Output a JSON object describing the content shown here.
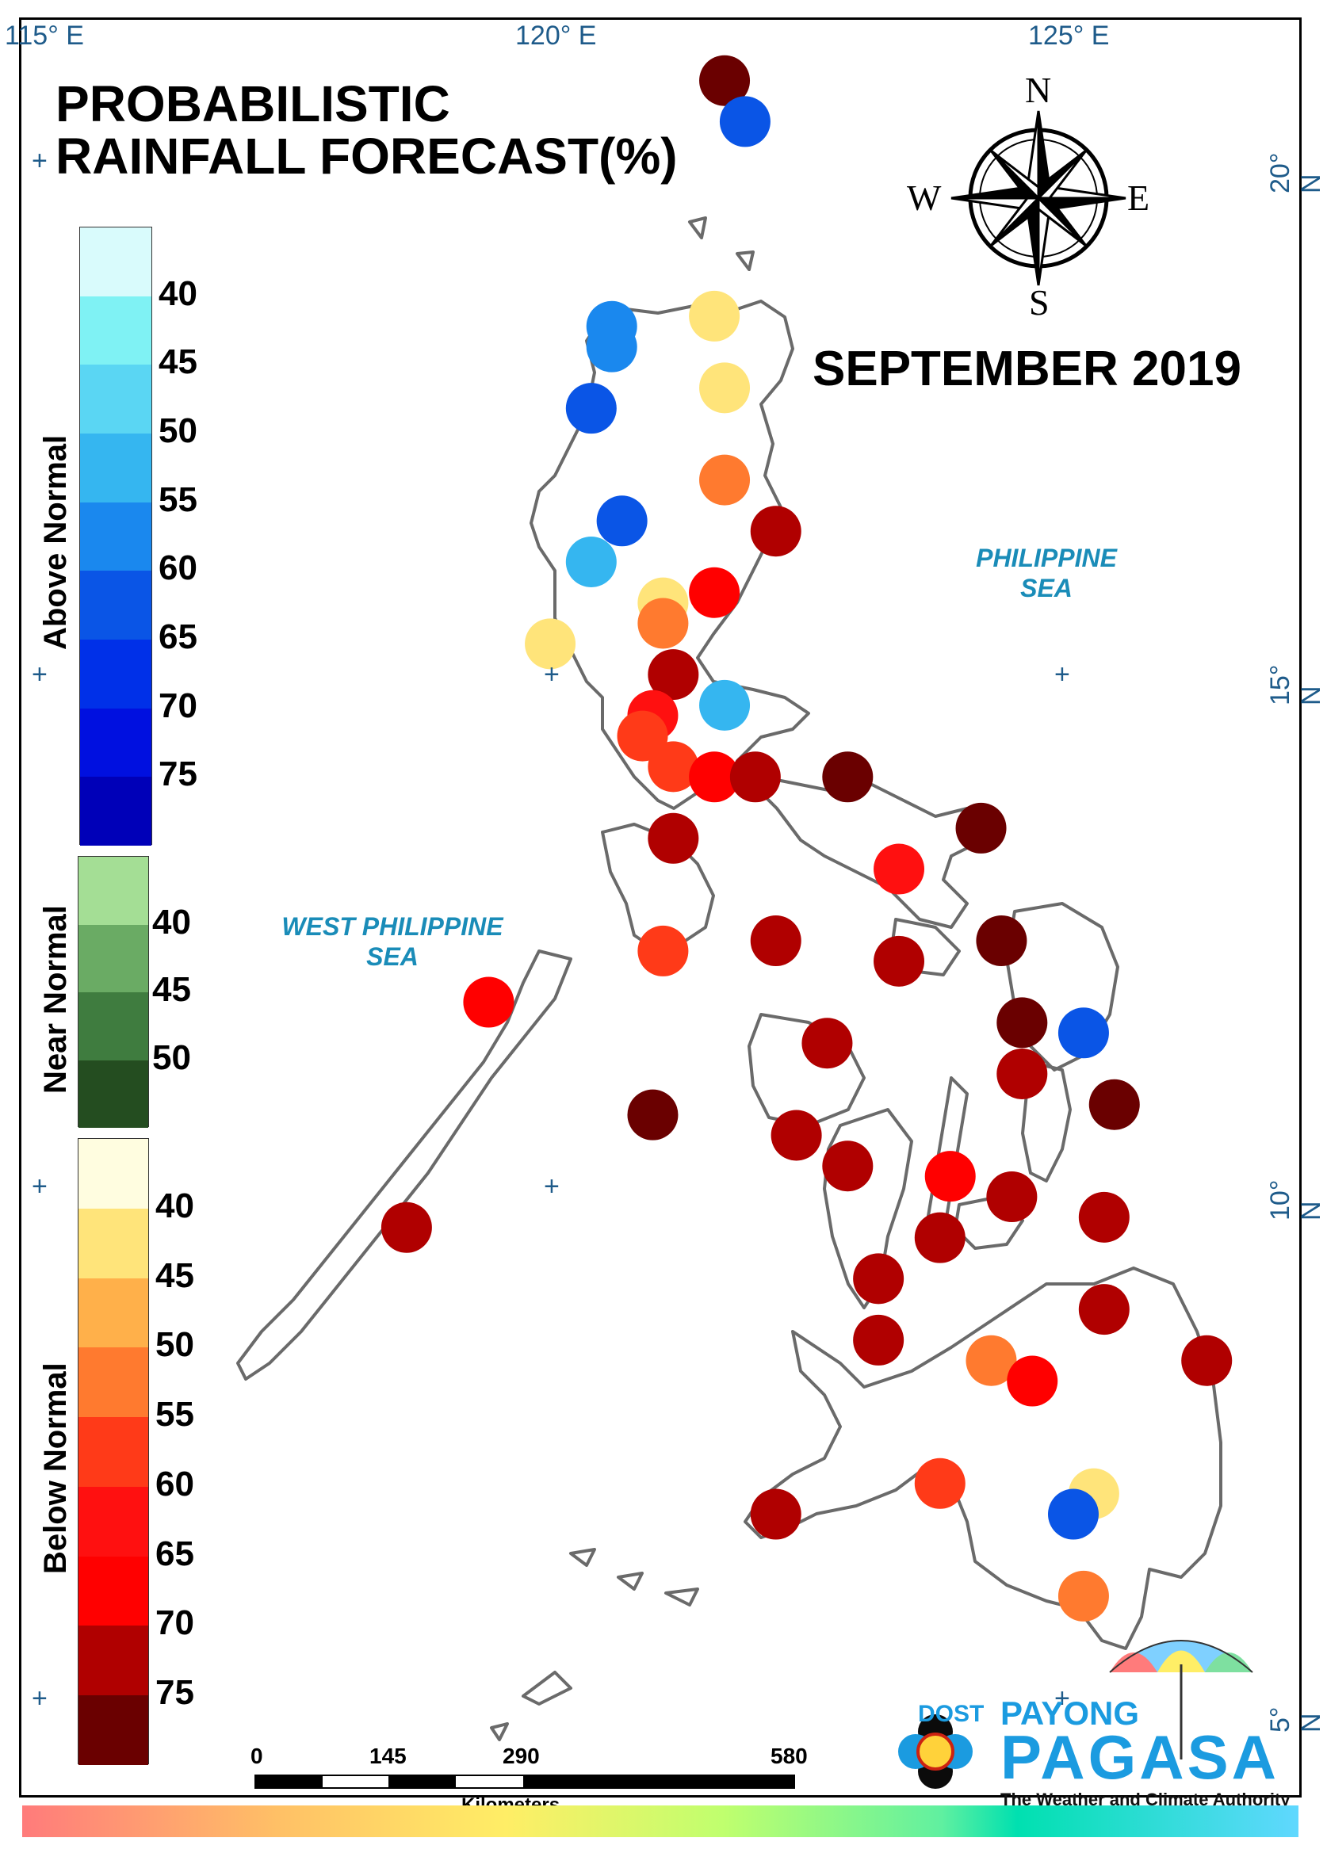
{
  "title_line1": "PROBABILISTIC",
  "title_line2": "RAINFALL FORECAST(%)",
  "month": "SEPTEMBER 2019",
  "seas": {
    "east_line1": "PHILIPPINE",
    "east_line2": "SEA",
    "west_line1": "WEST PHILIPPINE",
    "west_line2": "SEA"
  },
  "graticule": {
    "lon115": "115° E",
    "lon120": "120° E",
    "lon125": "125° E",
    "lat20": "20° N",
    "lat15": "15° N",
    "lat10": "10° N",
    "lat5": "5° N"
  },
  "compass": {
    "n": "N",
    "s": "S",
    "e": "E",
    "w": "W"
  },
  "legend": {
    "above": {
      "title": "Above Normal",
      "ticks": [
        "40",
        "45",
        "50",
        "55",
        "60",
        "65",
        "70",
        "75"
      ],
      "colors": [
        "#d9fbfc",
        "#7ff2f4",
        "#5ad6f3",
        "#35b6f0",
        "#1a88ee",
        "#0a55e6",
        "#0030e8",
        "#0010e0",
        "#0000b8"
      ]
    },
    "near": {
      "title": "Near Normal",
      "ticks": [
        "40",
        "45",
        "50"
      ],
      "colors": [
        "#a4de95",
        "#6aab64",
        "#3f7c3f",
        "#244d20"
      ]
    },
    "below": {
      "title": "Below Normal",
      "ticks": [
        "40",
        "45",
        "50",
        "55",
        "60",
        "65",
        "70",
        "75"
      ],
      "colors": [
        "#fffde0",
        "#ffe47a",
        "#ffb04a",
        "#ff7a2f",
        "#ff3a18",
        "#ff1010",
        "#ff0000",
        "#b00000",
        "#6a0000"
      ]
    }
  },
  "scale": {
    "labels": [
      "0",
      "145",
      "290",
      "580"
    ],
    "unit": "Kilometers"
  },
  "logo": {
    "dost": "DOST",
    "payong": "PAYONG",
    "pagasa": "PAGASA",
    "tagline": "The Weather and Climate Authority"
  },
  "stations": [
    {
      "lon": 121.6,
      "lat": 20.9,
      "cat": "below",
      "pct": 75
    },
    {
      "lon": 121.8,
      "lat": 20.5,
      "cat": "above",
      "pct": 60
    },
    {
      "lon": 120.5,
      "lat": 18.5,
      "cat": "above",
      "pct": 55
    },
    {
      "lon": 120.5,
      "lat": 18.3,
      "cat": "above",
      "pct": 55
    },
    {
      "lon": 120.3,
      "lat": 17.7,
      "cat": "above",
      "pct": 60
    },
    {
      "lon": 121.5,
      "lat": 18.6,
      "cat": "below",
      "pct": 40
    },
    {
      "lon": 121.6,
      "lat": 17.9,
      "cat": "below",
      "pct": 40
    },
    {
      "lon": 121.6,
      "lat": 17.0,
      "cat": "below",
      "pct": 50
    },
    {
      "lon": 120.6,
      "lat": 16.6,
      "cat": "above",
      "pct": 60
    },
    {
      "lon": 122.1,
      "lat": 16.5,
      "cat": "below",
      "pct": 70
    },
    {
      "lon": 120.3,
      "lat": 16.2,
      "cat": "above",
      "pct": 50
    },
    {
      "lon": 121.0,
      "lat": 15.8,
      "cat": "below",
      "pct": 40
    },
    {
      "lon": 121.0,
      "lat": 15.6,
      "cat": "below",
      "pct": 50
    },
    {
      "lon": 121.5,
      "lat": 15.9,
      "cat": "below",
      "pct": 65
    },
    {
      "lon": 119.9,
      "lat": 15.4,
      "cat": "below",
      "pct": 40
    },
    {
      "lon": 121.1,
      "lat": 15.1,
      "cat": "below",
      "pct": 70
    },
    {
      "lon": 121.6,
      "lat": 14.8,
      "cat": "above",
      "pct": 50
    },
    {
      "lon": 120.9,
      "lat": 14.7,
      "cat": "below",
      "pct": 60
    },
    {
      "lon": 120.8,
      "lat": 14.5,
      "cat": "below",
      "pct": 55
    },
    {
      "lon": 121.1,
      "lat": 14.2,
      "cat": "below",
      "pct": 55
    },
    {
      "lon": 121.5,
      "lat": 14.1,
      "cat": "below",
      "pct": 65
    },
    {
      "lon": 121.9,
      "lat": 14.1,
      "cat": "below",
      "pct": 70
    },
    {
      "lon": 122.8,
      "lat": 14.1,
      "cat": "below",
      "pct": 75
    },
    {
      "lon": 124.1,
      "lat": 13.6,
      "cat": "below",
      "pct": 75
    },
    {
      "lon": 121.1,
      "lat": 13.5,
      "cat": "below",
      "pct": 70
    },
    {
      "lon": 123.3,
      "lat": 13.2,
      "cat": "below",
      "pct": 60
    },
    {
      "lon": 121.0,
      "lat": 12.4,
      "cat": "below",
      "pct": 55
    },
    {
      "lon": 122.1,
      "lat": 12.5,
      "cat": "below",
      "pct": 70
    },
    {
      "lon": 123.3,
      "lat": 12.3,
      "cat": "below",
      "pct": 70
    },
    {
      "lon": 124.3,
      "lat": 12.5,
      "cat": "below",
      "pct": 75
    },
    {
      "lon": 119.3,
      "lat": 11.9,
      "cat": "below",
      "pct": 65
    },
    {
      "lon": 124.5,
      "lat": 11.7,
      "cat": "below",
      "pct": 75
    },
    {
      "lon": 125.1,
      "lat": 11.6,
      "cat": "above",
      "pct": 60
    },
    {
      "lon": 122.6,
      "lat": 11.5,
      "cat": "below",
      "pct": 70
    },
    {
      "lon": 124.5,
      "lat": 11.2,
      "cat": "below",
      "pct": 70
    },
    {
      "lon": 125.4,
      "lat": 10.9,
      "cat": "below",
      "pct": 75
    },
    {
      "lon": 120.9,
      "lat": 10.8,
      "cat": "below",
      "pct": 75
    },
    {
      "lon": 122.3,
      "lat": 10.6,
      "cat": "below",
      "pct": 70
    },
    {
      "lon": 122.8,
      "lat": 10.3,
      "cat": "below",
      "pct": 70
    },
    {
      "lon": 123.8,
      "lat": 10.2,
      "cat": "below",
      "pct": 65
    },
    {
      "lon": 124.4,
      "lat": 10.0,
      "cat": "below",
      "pct": 70
    },
    {
      "lon": 118.5,
      "lat": 9.7,
      "cat": "below",
      "pct": 70
    },
    {
      "lon": 125.3,
      "lat": 9.8,
      "cat": "below",
      "pct": 70
    },
    {
      "lon": 123.7,
      "lat": 9.6,
      "cat": "below",
      "pct": 70
    },
    {
      "lon": 123.1,
      "lat": 9.2,
      "cat": "below",
      "pct": 70
    },
    {
      "lon": 125.3,
      "lat": 8.9,
      "cat": "below",
      "pct": 70
    },
    {
      "lon": 123.1,
      "lat": 8.6,
      "cat": "below",
      "pct": 70
    },
    {
      "lon": 124.2,
      "lat": 8.4,
      "cat": "below",
      "pct": 50
    },
    {
      "lon": 126.3,
      "lat": 8.4,
      "cat": "below",
      "pct": 70
    },
    {
      "lon": 124.6,
      "lat": 8.2,
      "cat": "below",
      "pct": 65
    },
    {
      "lon": 125.2,
      "lat": 7.1,
      "cat": "below",
      "pct": 40
    },
    {
      "lon": 123.7,
      "lat": 7.2,
      "cat": "below",
      "pct": 55
    },
    {
      "lon": 125.0,
      "lat": 6.9,
      "cat": "above",
      "pct": 60
    },
    {
      "lon": 122.1,
      "lat": 6.9,
      "cat": "below",
      "pct": 70
    },
    {
      "lon": 125.1,
      "lat": 6.1,
      "cat": "below",
      "pct": 50
    }
  ]
}
